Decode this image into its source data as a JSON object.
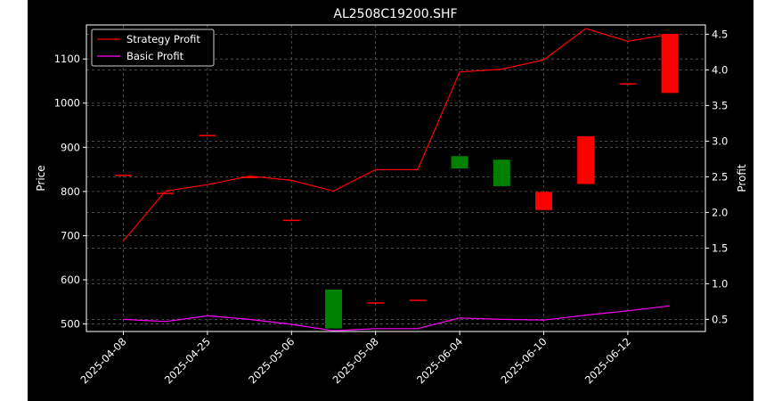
{
  "chart_data": {
    "type": "candlestick+line",
    "title": "AL2508C19200.SHF",
    "xlabel": "",
    "ylabel_left": "Price",
    "ylabel_right": "Profit",
    "ylim_left": [
      483,
      1177
    ],
    "ylim_right": [
      0.33,
      4.63
    ],
    "yticks_left": [
      500,
      600,
      700,
      800,
      900,
      1000,
      1100
    ],
    "yticks_right": [
      0.5,
      1.0,
      1.5,
      2.0,
      2.5,
      3.0,
      3.5,
      4.0,
      4.5
    ],
    "x_tick_labels": [
      "2025-04-08",
      "2025-04-25",
      "2025-05-06",
      "2025-05-08",
      "2025-06-04",
      "2025-06-10",
      "2025-06-12"
    ],
    "x_tick_positions": [
      0,
      2,
      4,
      6,
      8,
      10,
      12
    ],
    "grid": true,
    "legend": "upper-left",
    "candles": [
      {
        "i": 0,
        "open": 838,
        "close": 838,
        "color": "#ff0000"
      },
      {
        "i": 1,
        "open": 797,
        "close": 797,
        "color": "#ff0000"
      },
      {
        "i": 2,
        "open": 928,
        "close": 928,
        "color": "#ff0000"
      },
      {
        "i": 3,
        "open": 833,
        "close": 833,
        "color": "#ff0000"
      },
      {
        "i": 4,
        "open": 736,
        "close": 736,
        "color": "#ff0000"
      },
      {
        "i": 5,
        "open": 490,
        "close": 578,
        "color": "#008000"
      },
      {
        "i": 6,
        "open": 549,
        "close": 549,
        "color": "#ff0000"
      },
      {
        "i": 7,
        "open": 555,
        "close": 555,
        "color": "#ff0000"
      },
      {
        "i": 8,
        "open": 852,
        "close": 880,
        "color": "#008000"
      },
      {
        "i": 9,
        "open": 812,
        "close": 872,
        "color": "#008000"
      },
      {
        "i": 10,
        "open": 799,
        "close": 758,
        "color": "#ff0000"
      },
      {
        "i": 11,
        "open": 925,
        "close": 817,
        "color": "#ff0000"
      },
      {
        "i": 12,
        "open": 1045,
        "close": 1045,
        "color": "#ff0000"
      },
      {
        "i": 13,
        "open": 1157,
        "close": 1023,
        "color": "#ff0000"
      }
    ],
    "series": [
      {
        "name": "Strategy Profit",
        "color": "#ff0000",
        "values": [
          1.6,
          2.3,
          2.39,
          2.51,
          2.45,
          2.3,
          2.6,
          2.6,
          3.97,
          4.01,
          4.14,
          4.58,
          4.4,
          4.5
        ]
      },
      {
        "name": "Basic Profit",
        "color": "#ff00ff",
        "values": [
          0.5,
          0.47,
          0.55,
          0.5,
          0.43,
          0.34,
          0.37,
          0.37,
          0.52,
          0.5,
          0.49,
          0.56,
          0.62,
          0.69
        ]
      }
    ]
  }
}
